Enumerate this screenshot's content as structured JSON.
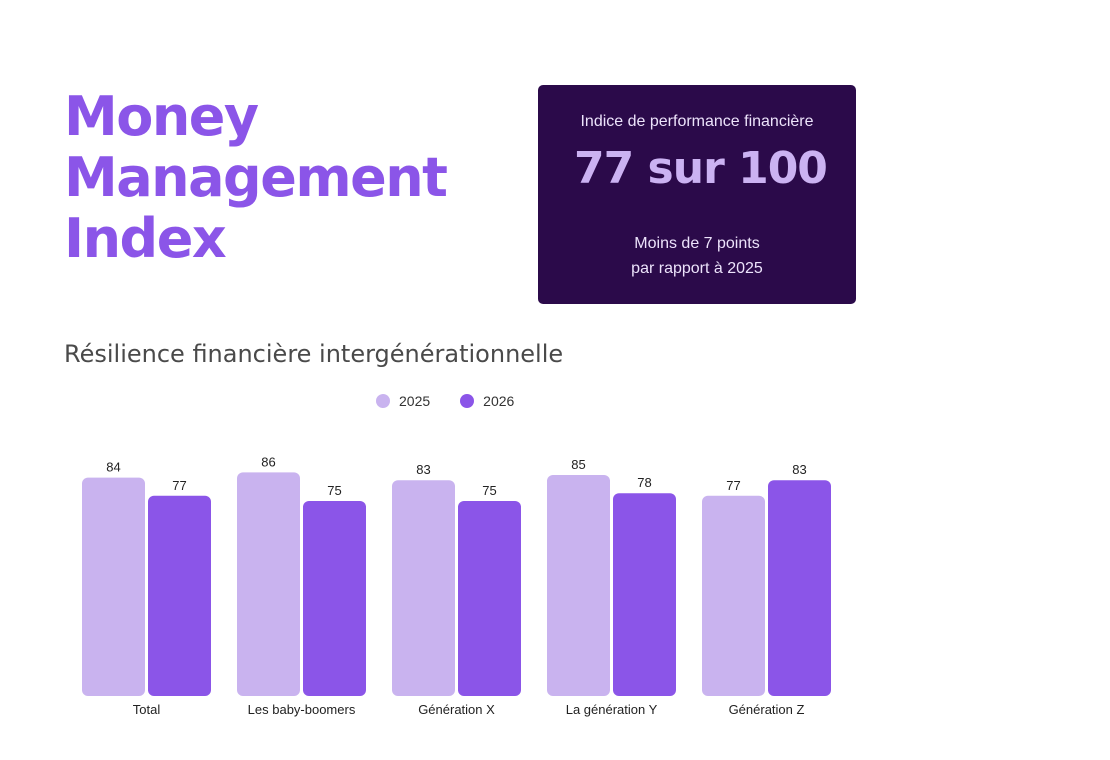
{
  "header": {
    "title_lines": [
      "Money",
      "Management",
      "Index"
    ]
  },
  "score_card": {
    "label": "Indice de performance financière",
    "value": "77 sur 100",
    "note_lines": [
      "Moins de 7 points",
      "par rapport à 2025"
    ],
    "background_color": "#2b0a4a",
    "value_color": "#cbb2f2"
  },
  "colors": {
    "accent": "#8b55e8",
    "series_2025": "#c9b3ef",
    "series_2026": "#8b55e8"
  },
  "chart_data": {
    "type": "bar",
    "title": "Résilience financière intergénérationnelle",
    "categories": [
      "Total",
      "Les baby-boomers",
      "Génération X",
      "La génération Y",
      "Génération Z"
    ],
    "series": [
      {
        "name": "2025",
        "values": [
          84,
          86,
          83,
          85,
          77
        ],
        "color": "#c9b3ef"
      },
      {
        "name": "2026",
        "values": [
          77,
          75,
          75,
          78,
          83
        ],
        "color": "#8b55e8"
      }
    ],
    "xlabel": "",
    "ylabel": "",
    "legend_position": "top-center",
    "grid": false,
    "data_labels": true
  }
}
